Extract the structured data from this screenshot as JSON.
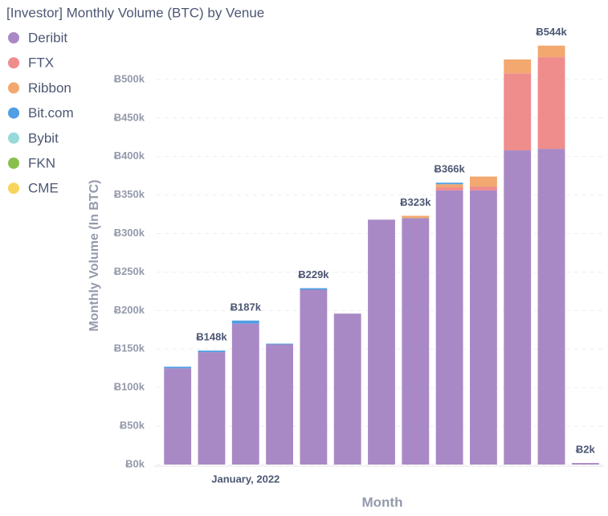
{
  "chart_data": {
    "type": "stacked-bar",
    "title": "[Investor] Monthly Volume (BTC) by Venue",
    "x_label": "Month",
    "y_label": "Monthly Volume (In BTC)",
    "categories": [
      null,
      null,
      "January, 2022",
      null,
      null,
      null,
      null,
      null,
      null,
      null,
      null,
      null,
      null
    ],
    "series": [
      {
        "name": "Deribit",
        "color": "#a989c5",
        "values": [
          125000,
          146000,
          183000,
          156000,
          227000,
          196000,
          318000,
          320000,
          356000,
          356000,
          408000,
          410000,
          2000
        ]
      },
      {
        "name": "FTX",
        "color": "#ef8c8c",
        "values": [
          0,
          0,
          0,
          0,
          0,
          0,
          0,
          0,
          4000,
          5000,
          100000,
          119000,
          0
        ]
      },
      {
        "name": "Ribbon",
        "color": "#f2a86f",
        "values": [
          0,
          0,
          0,
          0,
          0,
          0,
          0,
          3000,
          4000,
          13000,
          18000,
          15000,
          0
        ]
      },
      {
        "name": "Bit.com",
        "color": "#509ee3",
        "values": [
          2000,
          2000,
          4000,
          1000,
          2000,
          0,
          0,
          0,
          2000,
          0,
          0,
          0,
          0
        ]
      },
      {
        "name": "Bybit",
        "color": "#98d9d9",
        "values": [
          0,
          0,
          0,
          0,
          0,
          0,
          0,
          0,
          0,
          0,
          0,
          0,
          0
        ]
      },
      {
        "name": "FKN",
        "color": "#88bf4d",
        "values": [
          0,
          0,
          0,
          0,
          0,
          0,
          0,
          0,
          0,
          0,
          0,
          0,
          0
        ]
      },
      {
        "name": "CME",
        "color": "#f9d45c",
        "values": [
          0,
          0,
          0,
          0,
          0,
          0,
          0,
          0,
          0,
          0,
          0,
          0,
          0
        ]
      }
    ],
    "total_labels": [
      null,
      "Ƀ148k",
      "Ƀ187k",
      null,
      "Ƀ229k",
      null,
      null,
      "Ƀ323k",
      "Ƀ366k",
      null,
      null,
      "Ƀ544k",
      "Ƀ2k"
    ],
    "ylim": [
      0,
      550000
    ],
    "yticks": [
      {
        "value": 0,
        "label": "Ƀ0k"
      },
      {
        "value": 50000,
        "label": "Ƀ50k"
      },
      {
        "value": 100000,
        "label": "Ƀ100k"
      },
      {
        "value": 150000,
        "label": "Ƀ150k"
      },
      {
        "value": 200000,
        "label": "Ƀ200k"
      },
      {
        "value": 250000,
        "label": "Ƀ250k"
      },
      {
        "value": 300000,
        "label": "Ƀ300k"
      },
      {
        "value": 350000,
        "label": "Ƀ350k"
      },
      {
        "value": 400000,
        "label": "Ƀ400k"
      },
      {
        "value": 450000,
        "label": "Ƀ450k"
      },
      {
        "value": 500000,
        "label": "Ƀ500k"
      }
    ],
    "grid": true
  }
}
